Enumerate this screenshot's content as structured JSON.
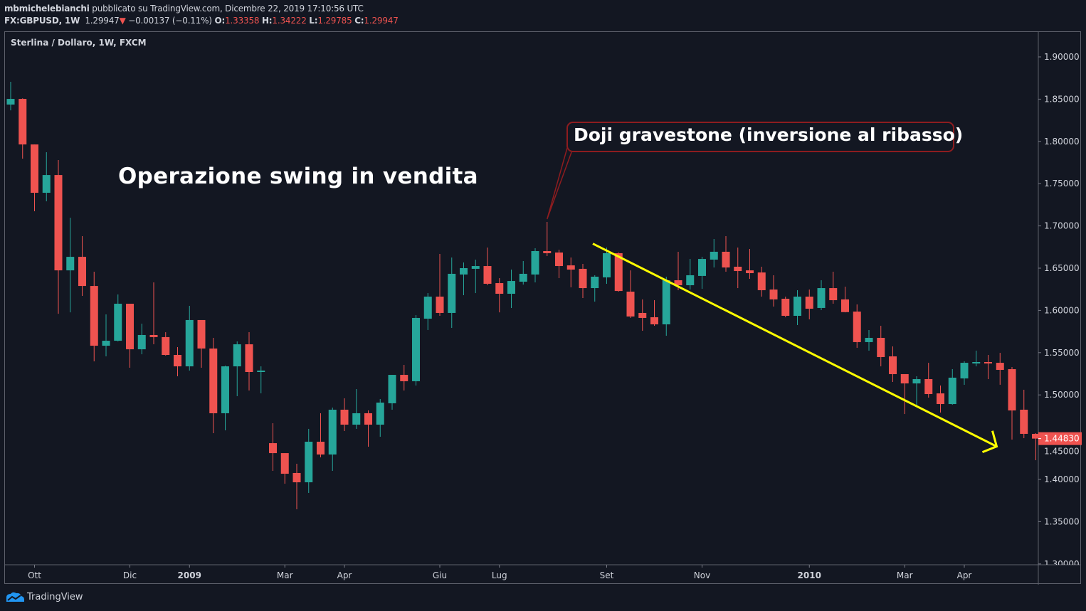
{
  "header": {
    "author": "mbmichelebianchi",
    "published_text": "pubblicato su TradingView.com, Dicembre 22, 2019 17:10:56 UTC",
    "symbol": "FX:GBPUSD, 1W",
    "last": "1.29947",
    "change": "−0.00137 (−0.11%)",
    "change_icon": "triangle-down-icon",
    "o_label": "O:",
    "o": "1.33358",
    "h_label": "H:",
    "h": "1.34222",
    "l_label": "L:",
    "l": "1.29785",
    "c_label": "C:",
    "c": "1.29947"
  },
  "legend": "Sterlina / Dollaro, 1W, FXCM",
  "annotations": {
    "swing_text": "Operazione swing in vendita",
    "callout_text": "Doji gravestone (inversione al ribasso)"
  },
  "footer": {
    "brand": "TradingView",
    "logo_icon": "tradingview-logo-icon"
  },
  "colors": {
    "background": "#131722",
    "up": "#26a69a",
    "down": "#ef5350",
    "arrow": "#ffff00",
    "callout_border": "#8e1c1f",
    "text": "#d1d4dc"
  },
  "chart_data": {
    "type": "candlestick",
    "title": "Sterlina / Dollaro, 1W, FXCM",
    "ylim": [
      1.299,
      1.93
    ],
    "grid": false,
    "y_ticks": [
      "1.30000",
      "1.35000",
      "1.40000",
      "1.45000",
      "1.50000",
      "1.55000",
      "1.60000",
      "1.65000",
      "1.70000",
      "1.75000",
      "1.80000",
      "1.85000",
      "1.90000"
    ],
    "x_ticks": [
      {
        "label": "Ott",
        "candle": 2
      },
      {
        "label": "Dic",
        "candle": 10
      },
      {
        "label": "2009",
        "candle": 15,
        "bold": true
      },
      {
        "label": "Mar",
        "candle": 23
      },
      {
        "label": "Apr",
        "candle": 28
      },
      {
        "label": "Giu",
        "candle": 36
      },
      {
        "label": "Lug",
        "candle": 41
      },
      {
        "label": "Set",
        "candle": 50
      },
      {
        "label": "Nov",
        "candle": 58
      },
      {
        "label": "2010",
        "candle": 67,
        "bold": true
      },
      {
        "label": "Mar",
        "candle": 75
      },
      {
        "label": "Apr",
        "candle": 80
      }
    ],
    "last_price_label": "1.44830",
    "ohlc": [
      [
        1.8436,
        1.8705,
        1.8368,
        1.8503
      ],
      [
        1.8503,
        1.851,
        1.7796,
        1.7964
      ],
      [
        1.7964,
        1.7964,
        1.7173,
        1.7392
      ],
      [
        1.7392,
        1.7872,
        1.7291,
        1.7602
      ],
      [
        1.7602,
        1.7779,
        1.596,
        1.6474
      ],
      [
        1.6474,
        1.7097,
        1.5977,
        1.6634
      ],
      [
        1.6634,
        1.6879,
        1.6172,
        1.6289
      ],
      [
        1.6289,
        1.6458,
        1.5397,
        1.5582
      ],
      [
        1.5582,
        1.5953,
        1.5456,
        1.5641
      ],
      [
        1.5641,
        1.6189,
        1.5633,
        1.6079
      ],
      [
        1.6079,
        1.6079,
        1.5322,
        1.554
      ],
      [
        1.554,
        1.5843,
        1.5481,
        1.5709
      ],
      [
        1.5709,
        1.6332,
        1.5599,
        1.5684
      ],
      [
        1.5684,
        1.5742,
        1.5465,
        1.5473
      ],
      [
        1.5473,
        1.5566,
        1.5221,
        1.5338
      ],
      [
        1.5338,
        1.6054,
        1.5288,
        1.5886
      ],
      [
        1.5886,
        1.5886,
        1.5322,
        1.5549
      ],
      [
        1.5549,
        1.5675,
        1.4547,
        1.4783
      ],
      [
        1.4783,
        1.5347,
        1.4581,
        1.5338
      ],
      [
        1.5338,
        1.5633,
        1.4985,
        1.5599
      ],
      [
        1.5599,
        1.5742,
        1.5052,
        1.5271
      ],
      [
        1.5271,
        1.5338,
        1.5019,
        1.5288
      ],
      [
        1.4429,
        1.4665,
        1.4101,
        1.4311
      ],
      [
        1.4311,
        1.4311,
        1.3949,
        1.4067
      ],
      [
        1.4076,
        1.4185,
        1.3646,
        1.3966
      ],
      [
        1.3966,
        1.4598,
        1.384,
        1.4446
      ],
      [
        1.4446,
        1.4783,
        1.4261,
        1.4295
      ],
      [
        1.4295,
        1.485,
        1.4101,
        1.4825
      ],
      [
        1.4825,
        1.496,
        1.4572,
        1.4648
      ],
      [
        1.4648,
        1.5069,
        1.4598,
        1.4783
      ],
      [
        1.4783,
        1.4816,
        1.4387,
        1.4648
      ],
      [
        1.4648,
        1.4951,
        1.4505,
        1.4909
      ],
      [
        1.4901,
        1.5237,
        1.4825,
        1.5237
      ],
      [
        1.5237,
        1.5355,
        1.5052,
        1.5162
      ],
      [
        1.5162,
        1.5944,
        1.5111,
        1.5911
      ],
      [
        1.5902,
        1.6205,
        1.5768,
        1.6163
      ],
      [
        1.6163,
        1.6668,
        1.5936,
        1.597
      ],
      [
        1.597,
        1.6626,
        1.5793,
        1.6433
      ],
      [
        1.6425,
        1.6567,
        1.618,
        1.65
      ],
      [
        1.6492,
        1.6601,
        1.6205,
        1.6525
      ],
      [
        1.6525,
        1.6744,
        1.6298,
        1.6315
      ],
      [
        1.6323,
        1.6382,
        1.5977,
        1.6197
      ],
      [
        1.6197,
        1.6483,
        1.6029,
        1.6348
      ],
      [
        1.634,
        1.6584,
        1.6306,
        1.6433
      ],
      [
        1.6425,
        1.6736,
        1.6332,
        1.6702
      ],
      [
        1.6702,
        1.7047,
        1.6643,
        1.6677
      ],
      [
        1.6685,
        1.6719,
        1.6382,
        1.6525
      ],
      [
        1.6533,
        1.6626,
        1.6273,
        1.6483
      ],
      [
        1.6492,
        1.6551,
        1.6146,
        1.6264
      ],
      [
        1.6264,
        1.6416,
        1.6104,
        1.6399
      ],
      [
        1.6391,
        1.6744,
        1.6315,
        1.6677
      ],
      [
        1.6677,
        1.6685,
        1.6222,
        1.623
      ],
      [
        1.6222,
        1.6474,
        1.5911,
        1.5928
      ],
      [
        1.597,
        1.613,
        1.5759,
        1.5911
      ],
      [
        1.5919,
        1.6121,
        1.5818,
        1.5835
      ],
      [
        1.5835,
        1.6399,
        1.57,
        1.6357
      ],
      [
        1.6357,
        1.6694,
        1.6239,
        1.6298
      ],
      [
        1.6298,
        1.6609,
        1.6247,
        1.6416
      ],
      [
        1.6408,
        1.6635,
        1.6256,
        1.6609
      ],
      [
        1.6601,
        1.6845,
        1.6508,
        1.6694
      ],
      [
        1.6694,
        1.6879,
        1.6458,
        1.6508
      ],
      [
        1.6517,
        1.6744,
        1.6264,
        1.6466
      ],
      [
        1.6474,
        1.6727,
        1.6374,
        1.6441
      ],
      [
        1.6449,
        1.6517,
        1.6163,
        1.6239
      ],
      [
        1.6247,
        1.6416,
        1.6045,
        1.613
      ],
      [
        1.6138,
        1.6163,
        1.5919,
        1.5936
      ],
      [
        1.5936,
        1.6239,
        1.5827,
        1.6163
      ],
      [
        1.6163,
        1.6247,
        1.5894,
        1.602
      ],
      [
        1.6029,
        1.6357,
        1.6003,
        1.6264
      ],
      [
        1.6264,
        1.6458,
        1.6079,
        1.6121
      ],
      [
        1.613,
        1.6281,
        1.5977,
        1.598
      ],
      [
        1.5986,
        1.6071,
        1.5557,
        1.5625
      ],
      [
        1.5625,
        1.5768,
        1.5524,
        1.5675
      ],
      [
        1.5675,
        1.5818,
        1.5338,
        1.5448
      ],
      [
        1.5456,
        1.5574,
        1.5153,
        1.5246
      ],
      [
        1.5246,
        1.5246,
        1.4774,
        1.5136
      ],
      [
        1.5136,
        1.5221,
        1.4867,
        1.5187
      ],
      [
        1.5187,
        1.538,
        1.4968,
        1.501
      ],
      [
        1.5018,
        1.5111,
        1.4791,
        1.4892
      ],
      [
        1.4892,
        1.5305,
        1.4884,
        1.5204
      ],
      [
        1.5195,
        1.5397,
        1.512,
        1.538
      ],
      [
        1.538,
        1.5524,
        1.5338,
        1.5389
      ],
      [
        1.5389,
        1.5473,
        1.5187,
        1.538
      ],
      [
        1.538,
        1.5498,
        1.512,
        1.5296
      ],
      [
        1.5305,
        1.533,
        1.4471,
        1.4816
      ],
      [
        1.4825,
        1.5061,
        1.4488,
        1.4539
      ],
      [
        1.4539,
        1.4547,
        1.4227,
        1.4483
      ]
    ],
    "trend_arrow": {
      "from": {
        "candle": 48,
        "price": 1.679
      },
      "to": {
        "candle": 82,
        "price": 1.439
      }
    },
    "callout_target": {
      "candle": 45,
      "price": 1.7047
    }
  }
}
